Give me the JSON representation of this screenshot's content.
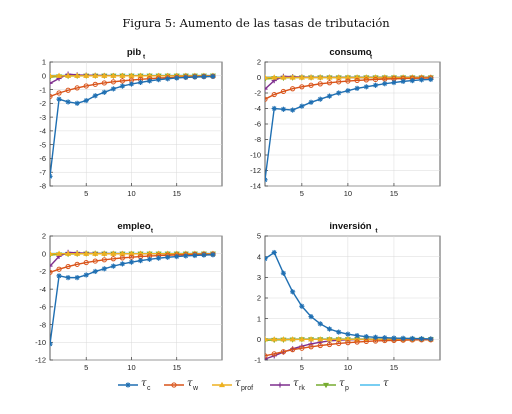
{
  "figure": {
    "title": "Figura 5: Aumento de las tasas de tributación"
  },
  "colors": {
    "tau_c": "#1f6fb2",
    "tau_w": "#d95319",
    "tau_prof": "#edb120",
    "tau_rk": "#7e2f8e",
    "tau_p": "#77ac30",
    "tau": "#4dbeee"
  },
  "legend": [
    {
      "key": "tau_c",
      "symbol": "τ",
      "sub": "c",
      "marker": "star"
    },
    {
      "key": "tau_w",
      "symbol": "τ",
      "sub": "w",
      "marker": "circle"
    },
    {
      "key": "tau_prof",
      "symbol": "τ",
      "sub": "prof",
      "marker": "triangle"
    },
    {
      "key": "tau_rk",
      "symbol": "τ",
      "sub": "rk",
      "marker": "plus"
    },
    {
      "key": "tau_p",
      "symbol": "τ",
      "sub": "p",
      "marker": "down-triangle"
    },
    {
      "key": "tau",
      "symbol": "τ",
      "sub": "",
      "marker": "none"
    }
  ],
  "chart_data": [
    {
      "type": "line",
      "title": "pib",
      "title_sub": "t",
      "xlim": [
        1,
        20
      ],
      "ylim": [
        -8,
        1
      ],
      "xticks": [
        5,
        10,
        15
      ],
      "yticks": [
        1,
        0,
        -1,
        -2,
        -3,
        -4,
        -5,
        -6,
        -7,
        -8
      ],
      "x": [
        1,
        2,
        3,
        4,
        5,
        6,
        7,
        8,
        9,
        10,
        11,
        12,
        13,
        14,
        15,
        16,
        17,
        18,
        19
      ],
      "series": [
        {
          "key": "tau_c",
          "values": [
            -7.3,
            -1.7,
            -1.9,
            -2.0,
            -1.8,
            -1.45,
            -1.2,
            -0.95,
            -0.75,
            -0.6,
            -0.48,
            -0.37,
            -0.28,
            -0.22,
            -0.16,
            -0.12,
            -0.09,
            -0.07,
            -0.05
          ]
        },
        {
          "key": "tau_w",
          "values": [
            -1.5,
            -1.25,
            -1.05,
            -0.88,
            -0.74,
            -0.62,
            -0.52,
            -0.44,
            -0.37,
            -0.31,
            -0.26,
            -0.21,
            -0.17,
            -0.14,
            -0.11,
            -0.09,
            -0.07,
            -0.05,
            -0.04
          ]
        },
        {
          "key": "tau_prof",
          "values": [
            0,
            0,
            0,
            0,
            0,
            0,
            0,
            0,
            0,
            0,
            0,
            0,
            0,
            0,
            0,
            0,
            0,
            0,
            0
          ]
        },
        {
          "key": "tau_rk",
          "values": [
            -0.55,
            -0.2,
            0.12,
            0.06,
            0.04,
            0.03,
            0.02,
            0.01,
            0.01,
            0,
            0,
            0,
            0,
            0,
            0,
            0,
            0,
            0,
            0
          ]
        },
        {
          "key": "tau_p",
          "values": [
            -0.1,
            -0.05,
            -0.02,
            -0.01,
            0,
            0,
            0,
            0,
            0,
            0,
            0,
            0,
            0,
            0,
            0,
            0,
            0,
            0,
            0
          ]
        },
        {
          "key": "tau",
          "values": [
            0.02,
            0.02,
            0.02,
            0.02,
            0.02,
            0.02,
            0.02,
            0.02,
            0.02,
            0.02,
            0.02,
            0.02,
            0.02,
            0.02,
            0.02,
            0.02,
            0.02,
            0.02,
            0.02
          ]
        }
      ]
    },
    {
      "type": "line",
      "title": "consumo",
      "title_sub": "t",
      "xlim": [
        1,
        20
      ],
      "ylim": [
        -14,
        2
      ],
      "xticks": [
        5,
        10,
        15
      ],
      "yticks": [
        2,
        0,
        -2,
        -4,
        -6,
        -8,
        -10,
        -12,
        -14
      ],
      "x": [
        1,
        2,
        3,
        4,
        5,
        6,
        7,
        8,
        9,
        10,
        11,
        12,
        13,
        14,
        15,
        16,
        17,
        18,
        19
      ],
      "series": [
        {
          "key": "tau_c",
          "values": [
            -13.2,
            -4.0,
            -4.1,
            -4.2,
            -3.7,
            -3.2,
            -2.8,
            -2.4,
            -2.0,
            -1.7,
            -1.4,
            -1.2,
            -1.0,
            -0.8,
            -0.65,
            -0.5,
            -0.4,
            -0.3,
            -0.25
          ]
        },
        {
          "key": "tau_w",
          "values": [
            -2.8,
            -2.2,
            -1.8,
            -1.45,
            -1.2,
            -1.0,
            -0.82,
            -0.68,
            -0.56,
            -0.46,
            -0.38,
            -0.31,
            -0.25,
            -0.2,
            -0.16,
            -0.13,
            -0.1,
            -0.08,
            -0.06
          ]
        },
        {
          "key": "tau_prof",
          "values": [
            0,
            0,
            0,
            0,
            0,
            0,
            0,
            0,
            0,
            0,
            0,
            0,
            0,
            0,
            0,
            0,
            0,
            0,
            0
          ]
        },
        {
          "key": "tau_rk",
          "values": [
            -1.5,
            -0.4,
            0.15,
            0.1,
            0.06,
            0.04,
            0.03,
            0.02,
            0.01,
            0,
            0,
            0,
            0,
            0,
            0,
            0,
            0,
            0,
            0
          ]
        },
        {
          "key": "tau_p",
          "values": [
            -0.2,
            -0.1,
            -0.05,
            -0.02,
            0,
            0,
            0,
            0,
            0,
            0,
            0,
            0,
            0,
            0,
            0,
            0,
            0,
            0,
            0
          ]
        },
        {
          "key": "tau",
          "values": [
            0.05,
            0.05,
            0.05,
            0.05,
            0.05,
            0.05,
            0.05,
            0.05,
            0.05,
            0.05,
            0.05,
            0.05,
            0.05,
            0.05,
            0.05,
            0.05,
            0.05,
            0.05,
            0.05
          ]
        }
      ]
    },
    {
      "type": "line",
      "title": "empleo",
      "title_sub": "t",
      "xlim": [
        1,
        20
      ],
      "ylim": [
        -12,
        2
      ],
      "xticks": [
        5,
        10,
        15
      ],
      "yticks": [
        2,
        0,
        -2,
        -4,
        -6,
        -8,
        -10,
        -12
      ],
      "x": [
        1,
        2,
        3,
        4,
        5,
        6,
        7,
        8,
        9,
        10,
        11,
        12,
        13,
        14,
        15,
        16,
        17,
        18,
        19
      ],
      "series": [
        {
          "key": "tau_c",
          "values": [
            -10.2,
            -2.5,
            -2.7,
            -2.7,
            -2.4,
            -2.0,
            -1.7,
            -1.4,
            -1.15,
            -0.95,
            -0.78,
            -0.63,
            -0.5,
            -0.4,
            -0.32,
            -0.25,
            -0.2,
            -0.15,
            -0.12
          ]
        },
        {
          "key": "tau_w",
          "values": [
            -2.1,
            -1.75,
            -1.45,
            -1.2,
            -1.0,
            -0.83,
            -0.69,
            -0.57,
            -0.47,
            -0.39,
            -0.32,
            -0.26,
            -0.21,
            -0.17,
            -0.14,
            -0.11,
            -0.09,
            -0.07,
            -0.05
          ]
        },
        {
          "key": "tau_prof",
          "values": [
            0,
            0,
            0,
            0,
            0,
            0,
            0,
            0,
            0,
            0,
            0,
            0,
            0,
            0,
            0,
            0,
            0,
            0,
            0
          ]
        },
        {
          "key": "tau_rk",
          "values": [
            -1.4,
            -0.3,
            0.15,
            0.1,
            0.06,
            0.04,
            0.03,
            0.02,
            0.01,
            0,
            0,
            0,
            0,
            0,
            0,
            0,
            0,
            0,
            0
          ]
        },
        {
          "key": "tau_p",
          "values": [
            -0.15,
            -0.08,
            -0.04,
            -0.02,
            0,
            0,
            0,
            0,
            0,
            0,
            0,
            0,
            0,
            0,
            0,
            0,
            0,
            0,
            0
          ]
        },
        {
          "key": "tau",
          "values": [
            0.03,
            0.03,
            0.03,
            0.03,
            0.03,
            0.03,
            0.03,
            0.03,
            0.03,
            0.03,
            0.03,
            0.03,
            0.03,
            0.03,
            0.03,
            0.03,
            0.03,
            0.03,
            0.03
          ]
        }
      ]
    },
    {
      "type": "line",
      "title": "inversión",
      "title_sub": "t",
      "xlim": [
        1,
        20
      ],
      "ylim": [
        -1,
        5
      ],
      "xticks": [
        5,
        10,
        15
      ],
      "yticks": [
        5,
        4,
        3,
        2,
        1,
        0,
        -1
      ],
      "x": [
        1,
        2,
        3,
        4,
        5,
        6,
        7,
        8,
        9,
        10,
        11,
        12,
        13,
        14,
        15,
        16,
        17,
        18,
        19
      ],
      "series": [
        {
          "key": "tau_c",
          "values": [
            3.9,
            4.2,
            3.2,
            2.3,
            1.6,
            1.1,
            0.75,
            0.5,
            0.35,
            0.25,
            0.18,
            0.13,
            0.1,
            0.08,
            0.06,
            0.05,
            0.04,
            0.03,
            0.02
          ]
        },
        {
          "key": "tau_w",
          "values": [
            -0.8,
            -0.7,
            -0.6,
            -0.5,
            -0.43,
            -0.36,
            -0.3,
            -0.25,
            -0.2,
            -0.16,
            -0.13,
            -0.1,
            -0.08,
            -0.06,
            -0.05,
            -0.04,
            -0.03,
            -0.02,
            -0.02
          ]
        },
        {
          "key": "tau_prof",
          "values": [
            0,
            0,
            0,
            0,
            0,
            0,
            0,
            0,
            0,
            0,
            0,
            0,
            0,
            0,
            0,
            0,
            0,
            0,
            0
          ]
        },
        {
          "key": "tau_rk",
          "values": [
            -0.95,
            -0.8,
            -0.62,
            -0.46,
            -0.33,
            -0.22,
            -0.14,
            -0.08,
            -0.04,
            -0.02,
            -0.01,
            0,
            0,
            0,
            0,
            0,
            0,
            0,
            0
          ]
        },
        {
          "key": "tau_p",
          "values": [
            -0.05,
            -0.03,
            -0.02,
            -0.01,
            0,
            0,
            0,
            0,
            0,
            0,
            0,
            0,
            0,
            0,
            0,
            0,
            0,
            0,
            0
          ]
        },
        {
          "key": "tau",
          "values": [
            0.02,
            0.02,
            0.02,
            0.02,
            0.02,
            0.02,
            0.02,
            0.02,
            0.02,
            0.02,
            0.02,
            0.02,
            0.02,
            0.02,
            0.02,
            0.02,
            0.02,
            0.02,
            0.02
          ]
        }
      ]
    }
  ]
}
